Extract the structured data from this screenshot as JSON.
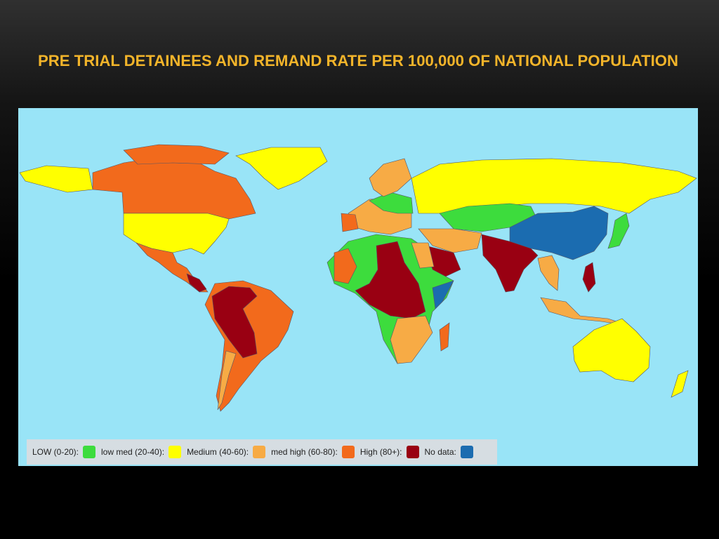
{
  "title": "PRE TRIAL DETAINEES AND REMAND RATE PER 100,000 OF NATIONAL POPULATION",
  "legend": {
    "items": [
      {
        "label": "LOW (0-20):",
        "color": "#3ddc3d"
      },
      {
        "label": "low med (20-40):",
        "color": "#ffff00"
      },
      {
        "label": "Medium (40-60):",
        "color": "#f7ab45"
      },
      {
        "label": "med high (60-80):",
        "color": "#f26a1c"
      },
      {
        "label": "High (80+):",
        "color": "#990012"
      },
      {
        "label": "No data:",
        "color": "#1b6cb0"
      }
    ]
  }
}
